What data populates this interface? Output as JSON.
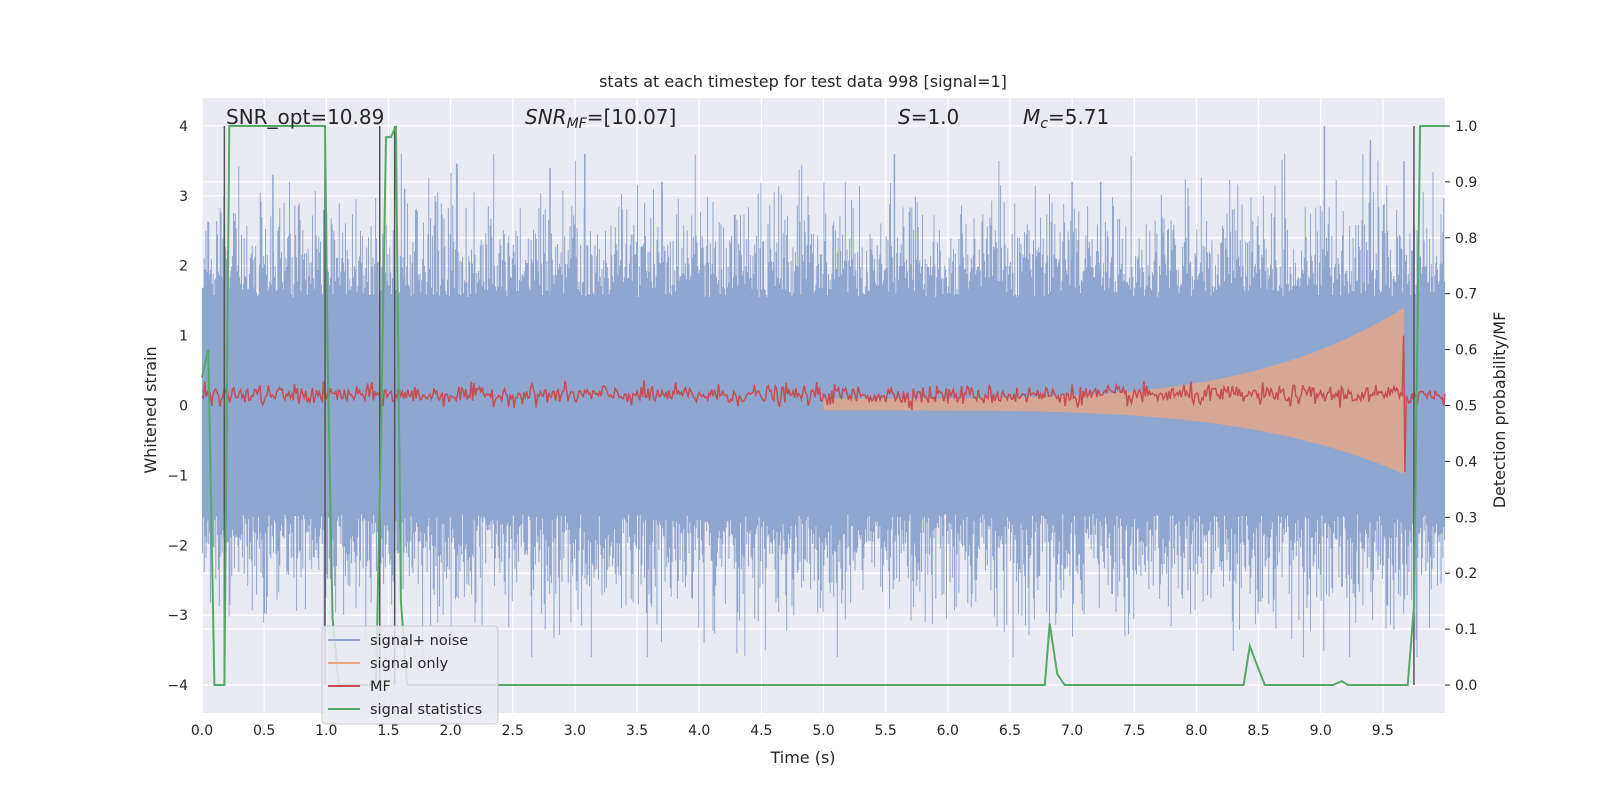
{
  "chart_data": {
    "type": "line",
    "title": "stats at each timestep for test data 998 [signal=1]",
    "xlabel": "Time (s)",
    "ylabel": "Whitened strain",
    "ylabel_right": "Detection probability/MF",
    "xlim": [
      0.0,
      10.0
    ],
    "ylim": [
      -4.4,
      4.4
    ],
    "ylim_right": [
      -0.05,
      1.05
    ],
    "xticks": [
      "0.0",
      "0.5",
      "1.0",
      "1.5",
      "2.0",
      "2.5",
      "3.0",
      "3.5",
      "4.0",
      "4.5",
      "5.0",
      "5.5",
      "6.0",
      "6.5",
      "7.0",
      "7.5",
      "8.0",
      "8.5",
      "9.0",
      "9.5"
    ],
    "yticks_left": [
      "4",
      "3",
      "2",
      "1",
      "0",
      "−1",
      "−2",
      "−3",
      "−4"
    ],
    "yticks_right": [
      "1.0",
      "0.9",
      "0.8",
      "0.7",
      "0.6",
      "0.5",
      "0.4",
      "0.3",
      "0.2",
      "0.1",
      "0.0"
    ],
    "grid": true,
    "legend_position": "lower-left",
    "annotations": {
      "snr_opt": "SNR_opt=10.89",
      "snr_mf_prefix": "SNR",
      "snr_mf_sub": "MF",
      "snr_mf_value": "=[10.07]",
      "s_symbol": "S",
      "s_value": "=1.0",
      "mc_symbol": "M",
      "mc_sub": "c",
      "mc_value": "=5.71"
    },
    "series": [
      {
        "name": "signal+ noise",
        "color": "#8fa6cf",
        "note_amplitude": "noise envelope approx ±2 with peaks to ±4",
        "peak_times": [
          0.57,
          0.98,
          1.63,
          2.8,
          3.08,
          3.7,
          5.57,
          7.0,
          7.23,
          9.03,
          9.4,
          9.67
        ],
        "peak_values": [
          3.3,
          2.8,
          3.1,
          3.4,
          3.6,
          3.2,
          3.6,
          3.2,
          3.2,
          4.0,
          3.8,
          3.5
        ]
      },
      {
        "name": "signal only",
        "color": "#e8a887",
        "chirp_start": 5.0,
        "chirp_merger": 9.67,
        "max_amplitude": 1.4
      },
      {
        "name": "MF",
        "color": "#c44e52",
        "baseline": 0.15,
        "spike_time": 9.67,
        "spike_value": 1.0,
        "dip_value": -0.95
      },
      {
        "name": "signal statistics",
        "color": "#55a868",
        "axis": "right",
        "x": [
          0.0,
          0.05,
          0.1,
          0.12,
          0.18,
          0.22,
          0.26,
          0.4,
          0.6,
          0.8,
          0.99,
          1.01,
          1.05,
          1.1,
          1.15,
          1.25,
          1.4,
          1.44,
          1.48,
          1.52,
          1.56,
          1.6,
          1.65,
          1.7,
          2.0,
          3.0,
          4.0,
          5.0,
          6.0,
          6.7,
          6.78,
          6.82,
          6.88,
          6.94,
          7.0,
          7.5,
          8.0,
          8.38,
          8.43,
          8.48,
          8.55,
          9.0,
          9.1,
          9.17,
          9.22,
          9.3,
          9.5,
          9.7,
          9.75,
          9.8,
          9.85,
          10.0
        ],
        "y": [
          0.55,
          0.6,
          0.0,
          0.0,
          0.0,
          1.0,
          1.0,
          1.0,
          1.0,
          1.0,
          1.0,
          0.6,
          0.12,
          0.0,
          0.0,
          0.0,
          0.0,
          0.45,
          0.98,
          0.98,
          1.0,
          0.15,
          0.0,
          0.0,
          0.0,
          0.0,
          0.0,
          0.0,
          0.0,
          0.0,
          0.0,
          0.11,
          0.02,
          0.0,
          0.0,
          0.0,
          0.0,
          0.0,
          0.07,
          0.04,
          0.0,
          0.0,
          0.0,
          0.007,
          0.0,
          0.0,
          0.0,
          0.0,
          0.14,
          1.0,
          1.0,
          1.0
        ]
      }
    ],
    "vlines": [
      0.18,
      0.99,
      1.43,
      1.55,
      9.75
    ]
  }
}
